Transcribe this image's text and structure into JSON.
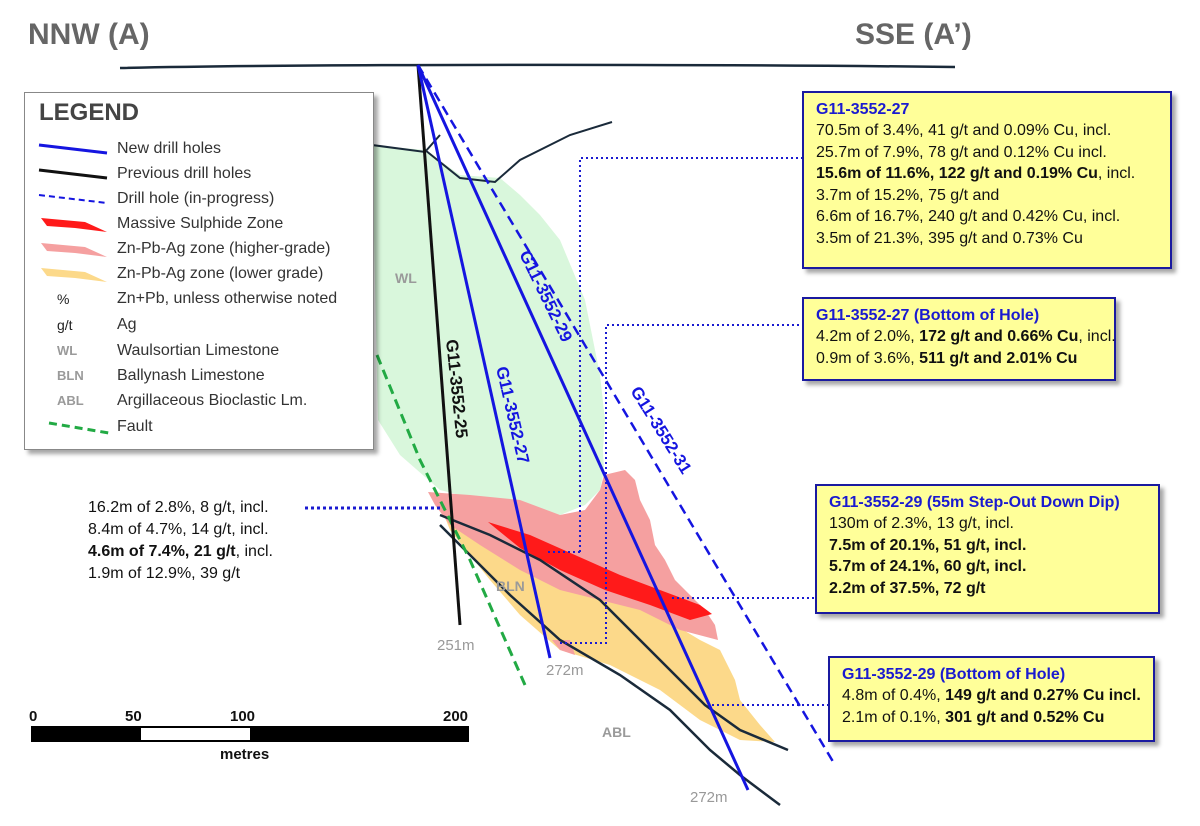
{
  "headers": {
    "left": "NNW (A)",
    "right": "SSE (A’)"
  },
  "colors": {
    "new_hole": "#1515e0",
    "previous_hole": "#111111",
    "wl_zone": "#d9f7dc",
    "massive_sulphide": "#ff1a1a",
    "higher_grade": "#f5a0a0",
    "lower_grade": "#fcd98a",
    "fault": "#22aa44",
    "callout_fill": "#ffff99"
  },
  "legend": {
    "title": "LEGEND",
    "items": [
      {
        "symbol": "new-hole-line",
        "label": "New drill holes"
      },
      {
        "symbol": "previous-hole-line",
        "label": "Previous drill holes"
      },
      {
        "symbol": "in-progress-dashed-line",
        "label": "Drill hole (in-progress)"
      },
      {
        "symbol": "massive-sulphide-swatch",
        "label": "Massive Sulphide Zone"
      },
      {
        "symbol": "higher-grade-swatch",
        "label": "Zn-Pb-Ag zone (higher-grade)"
      },
      {
        "symbol": "lower-grade-swatch",
        "label": "Zn-Pb-Ag zone (lower grade)"
      },
      {
        "abbr": "%",
        "label": "Zn+Pb, unless otherwise noted"
      },
      {
        "abbr": "g/t",
        "label": "Ag"
      },
      {
        "abbr": "WL",
        "label": "Waulsortian Limestone"
      },
      {
        "abbr": "BLN",
        "label": "Ballynash Limestone"
      },
      {
        "abbr": "ABL",
        "label": "Argillaceous Bioclastic Lm."
      },
      {
        "symbol": "fault-dashed-line",
        "label": "Fault"
      }
    ]
  },
  "hole_labels": {
    "h25": "G11-3552-25",
    "h27": "G11-3552-27",
    "h29": "G11-3552-29",
    "h31": "G11-3552-31"
  },
  "unit_labels": {
    "wl": "WL",
    "bln": "BLN",
    "abl": "ABL"
  },
  "depth_labels": {
    "h25_end": "251m",
    "h27_end": "272m",
    "h29_end": "272m"
  },
  "callouts": {
    "c1": {
      "title": "G11-3552-27",
      "lines": [
        {
          "t": "70.5m of 3.4%, 41 g/t and 0.09% Cu, incl.",
          "b": "",
          "r": ""
        },
        {
          "t": "25.7m of 7.9%, 78 g/t and 0.12% Cu incl.",
          "b": "",
          "r": ""
        },
        {
          "t": "",
          "b": "15.6m of 11.6%, 122 g/t and 0.19% Cu",
          "r": ", incl."
        },
        {
          "t": "3.7m of 15.2%, 75 g/t and",
          "b": "",
          "r": ""
        },
        {
          "t": "6.6m of 16.7%, 240 g/t and 0.42% Cu, incl.",
          "b": "",
          "r": ""
        },
        {
          "t": "3.5m of 21.3%, 395 g/t and 0.73% Cu",
          "b": "",
          "r": ""
        }
      ]
    },
    "c2": {
      "title": "G11-3552-27 (Bottom of Hole)",
      "lines": [
        {
          "t": "4.2m of 2.0%, ",
          "b": "172 g/t and 0.66% Cu",
          "r": ", incl."
        },
        {
          "t": "0.9m of 3.6%, ",
          "b": "511 g/t and 2.01% Cu",
          "r": ""
        }
      ]
    },
    "c3": {
      "title": "G11-3552-29 (55m Step-Out Down Dip)",
      "lines": [
        {
          "t": "130m of 2.3%, 13 g/t, incl.",
          "b": "",
          "r": ""
        },
        {
          "t": "",
          "b": "7.5m of 20.1%, 51 g/t, incl.",
          "r": ""
        },
        {
          "t": "",
          "b": "5.7m of 24.1%, 60 g/t, incl.",
          "r": ""
        },
        {
          "t": "",
          "b": "2.2m of 37.5%, 72 g/t",
          "r": ""
        }
      ]
    },
    "c4": {
      "title": "G11-3552-29 (Bottom of Hole)",
      "lines": [
        {
          "t": "4.8m of 0.4%, ",
          "b": "149 g/t and 0.27% Cu incl.",
          "r": ""
        },
        {
          "t": "2.1m of 0.1%, ",
          "b": "301 g/t and 0.52% Cu",
          "r": ""
        }
      ]
    },
    "plain": {
      "lines": [
        {
          "t": "16.2m of 2.8%, 8 g/t, incl.",
          "b": "",
          "r": ""
        },
        {
          "t": "8.4m of 4.7%, 14 g/t, incl.",
          "b": "",
          "r": ""
        },
        {
          "t": "",
          "b": "4.6m of 7.4%, 21 g/t",
          "r": ", incl."
        },
        {
          "t": "1.9m of 12.9%, 39 g/t",
          "b": "",
          "r": ""
        }
      ]
    }
  },
  "scale": {
    "ticks": [
      "0",
      "50",
      "100",
      "200"
    ],
    "unit": "metres"
  }
}
